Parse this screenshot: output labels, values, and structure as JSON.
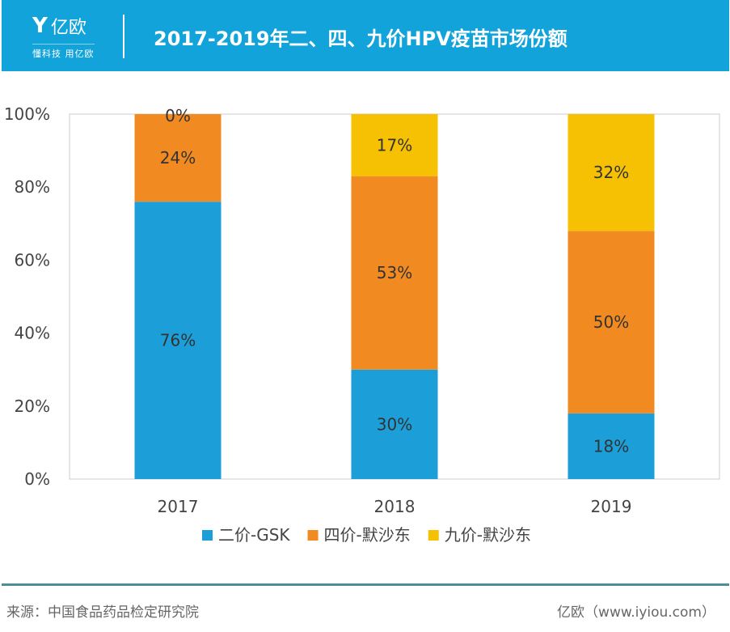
{
  "header": {
    "logo_text": "亿欧",
    "logo_slogan": "懂科技 用亿欧",
    "title": "2017-2019年二、四、九价HPV疫苗市场份额"
  },
  "chart_data": {
    "type": "bar",
    "stacked": true,
    "title": "2017-2019年二、四、九价HPV疫苗市场份额",
    "categories": [
      "2017",
      "2018",
      "2019"
    ],
    "ylim": [
      0,
      100
    ],
    "yticks": [
      "0%",
      "20%",
      "40%",
      "60%",
      "80%",
      "100%"
    ],
    "grid": false,
    "legend_position": "bottom",
    "series": [
      {
        "name": "二价-GSK",
        "color": "#1c9fd8",
        "values": [
          76,
          30,
          18
        ],
        "labels": [
          "76%",
          "30%",
          "18%"
        ]
      },
      {
        "name": "四价-默沙东",
        "color": "#f28a22",
        "values": [
          24,
          53,
          50
        ],
        "labels": [
          "24%",
          "53%",
          "50%"
        ]
      },
      {
        "name": "九价-默沙东",
        "color": "#f6c103",
        "values": [
          0,
          17,
          32
        ],
        "labels": [
          "0%",
          "17%",
          "32%"
        ]
      }
    ]
  },
  "footer": {
    "source": "来源：中国食品药品检定研究院",
    "credit": "亿欧（www.iyiou.com）"
  }
}
